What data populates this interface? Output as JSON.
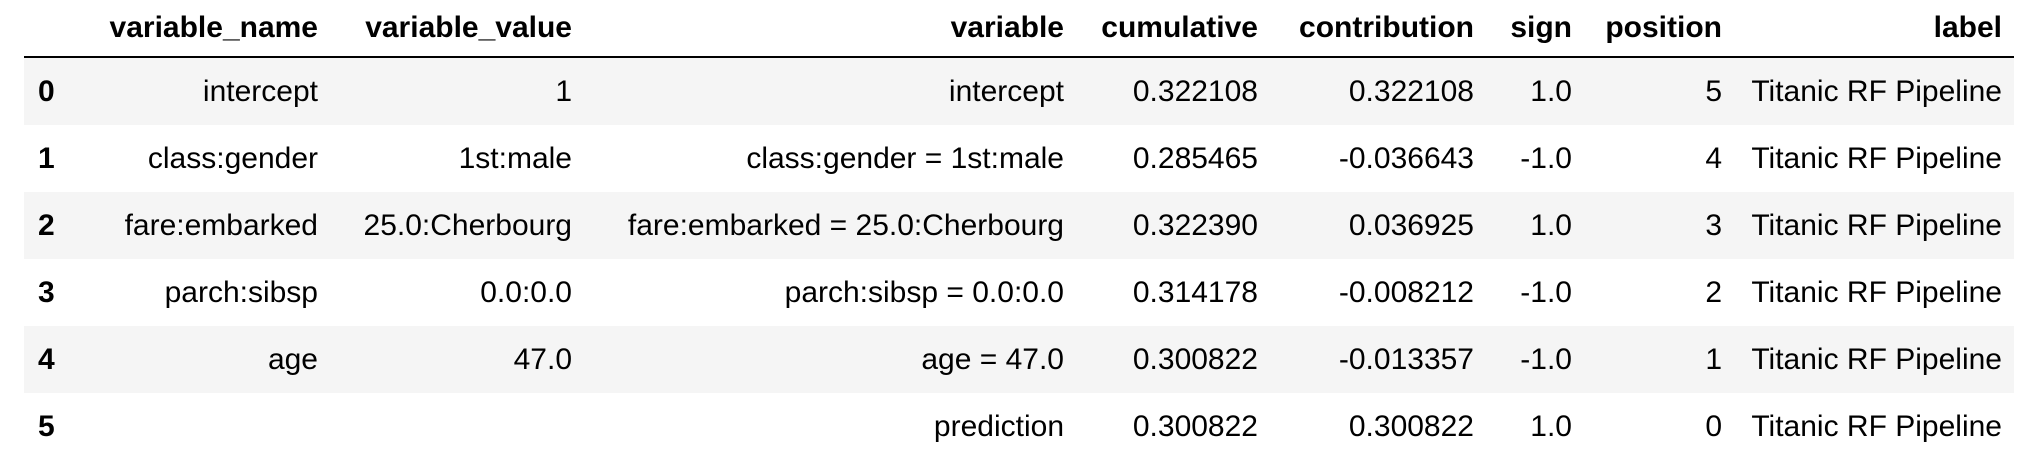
{
  "table": {
    "columns": [
      "",
      "variable_name",
      "variable_value",
      "variable",
      "cumulative",
      "contribution",
      "sign",
      "position",
      "label"
    ],
    "rows": [
      {
        "index": "0",
        "variable_name": "intercept",
        "variable_value": "1",
        "variable": "intercept",
        "cumulative": "0.322108",
        "contribution": "0.322108",
        "sign": "1.0",
        "position": "5",
        "label": "Titanic RF Pipeline"
      },
      {
        "index": "1",
        "variable_name": "class:gender",
        "variable_value": "1st:male",
        "variable": "class:gender = 1st:male",
        "cumulative": "0.285465",
        "contribution": "-0.036643",
        "sign": "-1.0",
        "position": "4",
        "label": "Titanic RF Pipeline"
      },
      {
        "index": "2",
        "variable_name": "fare:embarked",
        "variable_value": "25.0:Cherbourg",
        "variable": "fare:embarked = 25.0:Cherbourg",
        "cumulative": "0.322390",
        "contribution": "0.036925",
        "sign": "1.0",
        "position": "3",
        "label": "Titanic RF Pipeline"
      },
      {
        "index": "3",
        "variable_name": "parch:sibsp",
        "variable_value": "0.0:0.0",
        "variable": "parch:sibsp = 0.0:0.0",
        "cumulative": "0.314178",
        "contribution": "-0.008212",
        "sign": "-1.0",
        "position": "2",
        "label": "Titanic RF Pipeline"
      },
      {
        "index": "4",
        "variable_name": "age",
        "variable_value": "47.0",
        "variable": "age = 47.0",
        "cumulative": "0.300822",
        "contribution": "-0.013357",
        "sign": "-1.0",
        "position": "1",
        "label": "Titanic RF Pipeline"
      },
      {
        "index": "5",
        "variable_name": "",
        "variable_value": "",
        "variable": "prediction",
        "cumulative": "0.300822",
        "contribution": "0.300822",
        "sign": "1.0",
        "position": "0",
        "label": "Titanic RF Pipeline"
      }
    ]
  }
}
